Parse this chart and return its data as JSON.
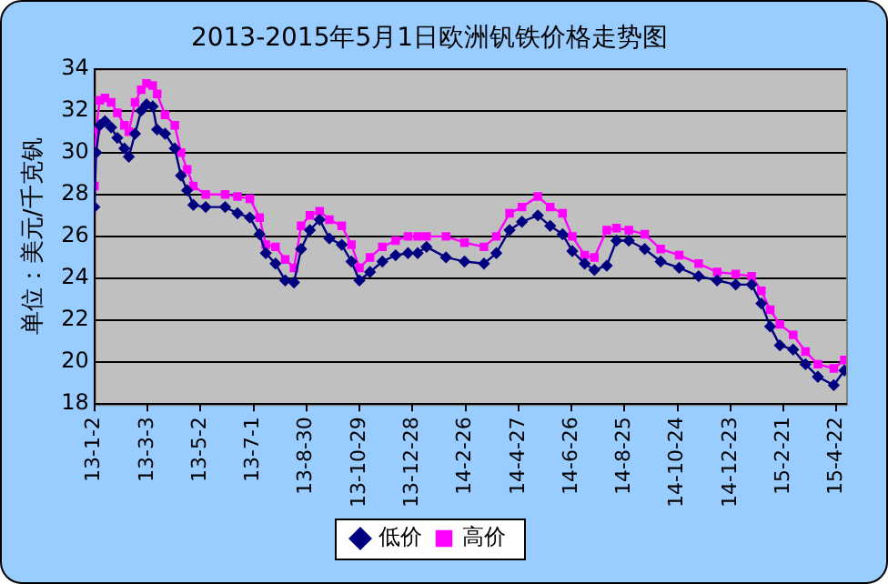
{
  "chart_data": {
    "type": "line",
    "title": "2013-2015年5月1日欧洲钒铁价格走势图",
    "ylabel": "单位：美元/千克钒",
    "x": [
      "2013-01-02",
      "2013-01-04",
      "2013-01-08",
      "2013-01-14",
      "2013-01-21",
      "2013-01-28",
      "2013-02-05",
      "2013-02-10",
      "2013-02-17",
      "2013-02-24",
      "2013-03-02",
      "2013-03-09",
      "2013-03-14",
      "2013-03-23",
      "2013-04-03",
      "2013-04-10",
      "2013-04-17",
      "2013-04-24",
      "2013-05-08",
      "2013-05-30",
      "2013-06-13",
      "2013-06-27",
      "2013-07-08",
      "2013-07-15",
      "2013-07-26",
      "2013-08-06",
      "2013-08-16",
      "2013-08-24",
      "2013-09-03",
      "2013-09-14",
      "2013-09-25",
      "2013-10-09",
      "2013-10-20",
      "2013-10-29",
      "2013-11-10",
      "2013-11-24",
      "2013-12-09",
      "2013-12-23",
      "2014-01-03",
      "2014-01-13",
      "2014-02-04",
      "2014-02-25",
      "2014-03-19",
      "2014-04-02",
      "2014-04-17",
      "2014-05-01",
      "2014-05-19",
      "2014-06-02",
      "2014-06-16",
      "2014-06-27",
      "2014-07-11",
      "2014-07-22",
      "2014-08-05",
      "2014-08-16",
      "2014-08-30",
      "2014-09-17",
      "2014-10-05",
      "2014-10-26",
      "2014-11-17",
      "2014-12-08",
      "2014-12-29",
      "2015-01-16",
      "2015-01-27",
      "2015-02-06",
      "2015-02-17",
      "2015-03-04",
      "2015-03-18",
      "2015-04-01",
      "2015-04-19",
      "2015-05-01"
    ],
    "series": [
      {
        "name": "低价",
        "color": "#000080",
        "marker": "diamond",
        "values": [
          27.4,
          30.0,
          31.3,
          31.5,
          31.2,
          30.7,
          30.2,
          29.8,
          30.9,
          32.0,
          32.3,
          32.2,
          31.1,
          30.9,
          30.2,
          28.9,
          28.2,
          27.5,
          27.4,
          27.4,
          27.1,
          26.9,
          26.1,
          25.2,
          24.7,
          23.9,
          23.8,
          25.4,
          26.3,
          26.8,
          25.9,
          25.6,
          24.8,
          23.9,
          24.3,
          24.8,
          25.1,
          25.2,
          25.2,
          25.5,
          25.0,
          24.8,
          24.7,
          25.2,
          26.3,
          26.7,
          27.0,
          26.5,
          26.1,
          25.3,
          24.7,
          24.4,
          24.6,
          25.8,
          25.8,
          25.4,
          24.8,
          24.5,
          24.1,
          23.9,
          23.7,
          23.7,
          22.8,
          21.7,
          20.8,
          20.6,
          19.9,
          19.3,
          18.9,
          19.6
        ]
      },
      {
        "name": "高价",
        "color": "#ff00ff",
        "marker": "square",
        "values": [
          28.4,
          31.1,
          32.5,
          32.6,
          32.4,
          31.9,
          31.3,
          31.0,
          32.4,
          33.0,
          33.3,
          33.2,
          32.8,
          31.8,
          31.3,
          30.0,
          29.2,
          28.4,
          28.0,
          28.0,
          27.9,
          27.8,
          26.9,
          25.6,
          25.5,
          24.9,
          24.5,
          26.5,
          27.0,
          27.2,
          26.8,
          26.5,
          25.6,
          24.5,
          25.0,
          25.5,
          25.8,
          26.0,
          26.0,
          26.0,
          26.0,
          25.7,
          25.5,
          26.0,
          27.1,
          27.4,
          27.9,
          27.4,
          27.1,
          26.0,
          25.1,
          25.0,
          26.3,
          26.4,
          26.3,
          26.1,
          25.4,
          25.1,
          24.7,
          24.3,
          24.2,
          24.1,
          23.4,
          22.5,
          21.8,
          21.3,
          20.5,
          19.9,
          19.7,
          20.1
        ]
      }
    ],
    "xlim": [
      "2013-01-02",
      "2015-05-03"
    ],
    "xticks": [
      {
        "value": "2013-01-02",
        "label": "13-1-2"
      },
      {
        "value": "2013-03-03",
        "label": "13-3-3"
      },
      {
        "value": "2013-05-02",
        "label": "13-5-2"
      },
      {
        "value": "2013-07-01",
        "label": "13-7-1"
      },
      {
        "value": "2013-08-30",
        "label": "13-8-30"
      },
      {
        "value": "2013-10-29",
        "label": "13-10-29"
      },
      {
        "value": "2013-12-28",
        "label": "13-12-28"
      },
      {
        "value": "2014-02-26",
        "label": "14-2-26"
      },
      {
        "value": "2014-04-27",
        "label": "14-4-27"
      },
      {
        "value": "2014-06-26",
        "label": "14-6-26"
      },
      {
        "value": "2014-08-25",
        "label": "14-8-25"
      },
      {
        "value": "2014-10-24",
        "label": "14-10-24"
      },
      {
        "value": "2014-12-23",
        "label": "14-12-23"
      },
      {
        "value": "2015-02-21",
        "label": "15-2-21"
      },
      {
        "value": "2015-04-22",
        "label": "15-4-22"
      }
    ],
    "ylim": [
      18,
      34
    ],
    "yticks": [
      18,
      20,
      22,
      24,
      26,
      28,
      30,
      32,
      34
    ],
    "grid": "y",
    "legend": "bottom",
    "line_style": "solid"
  }
}
